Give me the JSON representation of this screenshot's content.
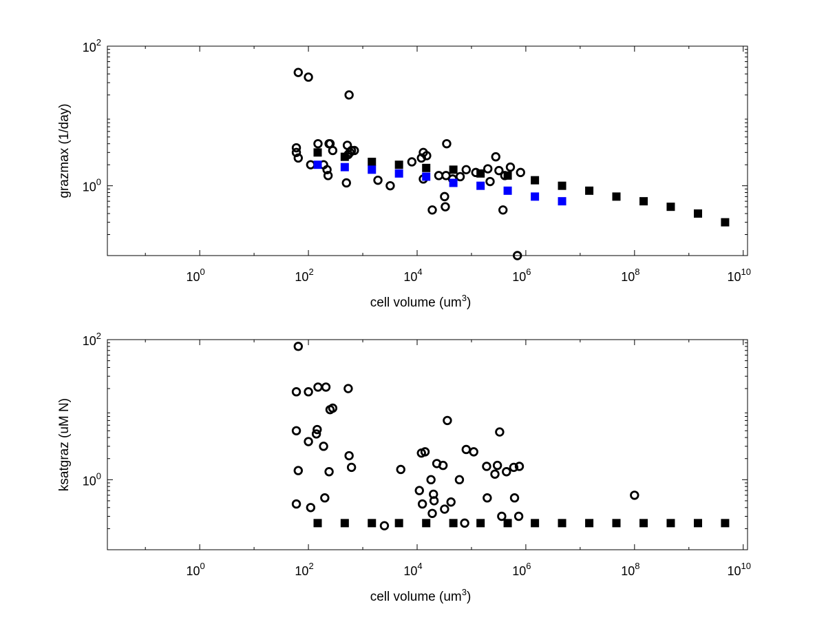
{
  "chart_data": [
    {
      "type": "scatter",
      "xlabel": "cell volume (um",
      "xlabel_sup": "3",
      "xlabel_suffix": ")",
      "ylabel": "grazmax (1/day)",
      "xscale": "log",
      "yscale": "log",
      "xlim": [
        0.02,
        12000000000.0
      ],
      "ylim": [
        0.1,
        100
      ],
      "x_ticks": [
        {
          "base": "10",
          "exp": "0",
          "value": 1
        },
        {
          "base": "10",
          "exp": "2",
          "value": 100
        },
        {
          "base": "10",
          "exp": "4",
          "value": 10000
        },
        {
          "base": "10",
          "exp": "6",
          "value": 1000000
        },
        {
          "base": "10",
          "exp": "8",
          "value": 100000000
        },
        {
          "base": "10",
          "exp": "10",
          "value": 10000000000
        }
      ],
      "y_ticks": [
        {
          "base": "10",
          "exp": "0",
          "value": 1
        },
        {
          "base": "10",
          "exp": "2",
          "value": 100
        }
      ],
      "grid": false,
      "series": [
        {
          "marker": "circle-open",
          "color": "#000000",
          "x": [
            60,
            60,
            65,
            65,
            100,
            110,
            150,
            190,
            220,
            230,
            240,
            250,
            280,
            500,
            520,
            540,
            560,
            580,
            620,
            700,
            1900,
            3200,
            8000,
            12000,
            13000,
            15000,
            25000,
            32000,
            33000,
            34000,
            35000,
            45000,
            62000,
            80000,
            120000,
            200000,
            220000,
            280000,
            320000,
            380000,
            410000,
            520000,
            700000,
            800000,
            13000,
            19000
          ],
          "y": [
            3.5,
            3.0,
            2.5,
            42.0,
            36.0,
            2.0,
            4.0,
            2.0,
            1.7,
            1.4,
            4.0,
            4.0,
            3.2,
            1.1,
            3.8,
            2.8,
            20.0,
            3.0,
            3.2,
            3.2,
            1.2,
            1.0,
            2.2,
            2.5,
            3.0,
            2.7,
            1.4,
            0.7,
            0.5,
            1.4,
            4.0,
            1.25,
            1.35,
            1.7,
            1.55,
            1.75,
            1.15,
            2.6,
            1.65,
            0.45,
            1.4,
            1.85,
            0.1,
            1.55,
            1.25,
            0.45
          ]
        },
        {
          "marker": "square-filled",
          "color": "#000000",
          "x": [
            148,
            466,
            1470,
            4640,
            14700,
            46400,
            147000,
            464000,
            1470000,
            4640000,
            14700000,
            46400000,
            147000000,
            464000000,
            1470000000,
            4640000000
          ],
          "y": [
            3.0,
            2.6,
            2.2,
            2.0,
            1.8,
            1.7,
            1.5,
            1.4,
            1.2,
            1.0,
            0.85,
            0.7,
            0.6,
            0.5,
            0.4,
            0.3
          ]
        },
        {
          "marker": "square-filled",
          "color": "#0000ff",
          "x": [
            148,
            466,
            1470,
            4640,
            14700,
            46400,
            147000,
            464000,
            1470000,
            4640000
          ],
          "y": [
            2.0,
            1.85,
            1.7,
            1.5,
            1.35,
            1.1,
            1.0,
            0.85,
            0.7,
            0.6
          ]
        }
      ]
    },
    {
      "type": "scatter",
      "xlabel": "cell volume (um",
      "xlabel_sup": "3",
      "xlabel_suffix": ")",
      "ylabel": "ksatgraz (uM N)",
      "xscale": "log",
      "yscale": "log",
      "xlim": [
        0.02,
        12000000000.0
      ],
      "ylim": [
        0.1,
        100
      ],
      "x_ticks": [
        {
          "base": "10",
          "exp": "0",
          "value": 1
        },
        {
          "base": "10",
          "exp": "2",
          "value": 100
        },
        {
          "base": "10",
          "exp": "4",
          "value": 10000
        },
        {
          "base": "10",
          "exp": "6",
          "value": 1000000
        },
        {
          "base": "10",
          "exp": "8",
          "value": 100000000
        },
        {
          "base": "10",
          "exp": "10",
          "value": 10000000000
        }
      ],
      "y_ticks": [
        {
          "base": "10",
          "exp": "0",
          "value": 1
        },
        {
          "base": "10",
          "exp": "2",
          "value": 100
        }
      ],
      "grid": false,
      "series": [
        {
          "marker": "circle-open",
          "color": "#000000",
          "x": [
            60,
            60,
            60,
            65,
            65,
            100,
            100,
            110,
            140,
            145,
            150,
            190,
            200,
            210,
            240,
            250,
            280,
            540,
            560,
            620,
            2500,
            5000,
            11000,
            12000,
            12500,
            14000,
            18000,
            19000,
            20000,
            20500,
            23000,
            30000,
            32000,
            36000,
            42000,
            60000,
            75000,
            80000,
            110000,
            190000,
            195000,
            270000,
            300000,
            330000,
            360000,
            440000,
            600000,
            620000,
            740000,
            760000,
            100000000
          ],
          "y": [
            18.0,
            5.0,
            0.45,
            1.35,
            80.0,
            18.0,
            3.5,
            0.4,
            4.5,
            5.2,
            21.0,
            3.0,
            0.55,
            21.0,
            1.3,
            10.0,
            10.5,
            20.0,
            2.2,
            1.5,
            0.22,
            1.4,
            0.7,
            2.4,
            0.45,
            2.5,
            1.0,
            0.33,
            0.62,
            0.5,
            1.7,
            1.6,
            0.38,
            7.0,
            0.48,
            1.0,
            0.24,
            2.7,
            2.5,
            1.55,
            0.55,
            1.2,
            1.6,
            4.8,
            0.3,
            1.3,
            1.5,
            0.55,
            0.3,
            1.55,
            0.6
          ]
        },
        {
          "marker": "square-filled",
          "color": "#000000",
          "x": [
            148,
            466,
            1470,
            4640,
            14700,
            46400,
            147000,
            464000,
            1470000,
            4640000,
            14700000,
            46400000,
            147000000,
            464000000,
            1470000000,
            4640000000
          ],
          "y": [
            0.24,
            0.24,
            0.24,
            0.24,
            0.24,
            0.24,
            0.24,
            0.24,
            0.24,
            0.24,
            0.24,
            0.24,
            0.24,
            0.24,
            0.24,
            0.24
          ]
        }
      ]
    }
  ]
}
